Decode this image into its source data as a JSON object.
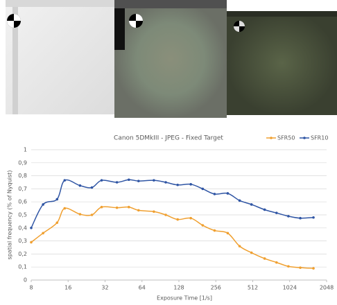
{
  "chart_data": {
    "type": "line",
    "title": "Canon 5DMkIII - JPEG - Fixed Target",
    "x_label": "Exposure Time [1/s]",
    "y_label": "spatial frequency (% of Nyquist)",
    "x": [
      8,
      10,
      13,
      15,
      20,
      25,
      30,
      40,
      50,
      60,
      80,
      100,
      125,
      160,
      200,
      250,
      320,
      400,
      500,
      640,
      800,
      1000,
      1250,
      1600
    ],
    "series": [
      {
        "name": "SFR50",
        "color": "#f0a030",
        "values": [
          0.29,
          0.36,
          0.44,
          0.55,
          0.505,
          0.5,
          0.56,
          0.555,
          0.56,
          0.535,
          0.525,
          0.5,
          0.465,
          0.475,
          0.42,
          0.38,
          0.36,
          0.26,
          0.21,
          0.165,
          0.135,
          0.105,
          0.095,
          0.09
        ]
      },
      {
        "name": "SFR10",
        "color": "#2f55a4",
        "values": [
          0.4,
          0.58,
          0.62,
          0.765,
          0.725,
          0.71,
          0.765,
          0.75,
          0.77,
          0.76,
          0.765,
          0.75,
          0.73,
          0.735,
          0.7,
          0.66,
          0.665,
          0.61,
          0.58,
          0.54,
          0.515,
          0.49,
          0.475,
          0.48
        ]
      }
    ],
    "xlim": [
      8,
      2048
    ],
    "xticks": [
      8,
      16,
      32,
      64,
      128,
      256,
      512,
      1024,
      2048
    ],
    "xscale": "log2",
    "ylim": [
      0,
      1
    ],
    "yticks": [
      0,
      {
        "value": 0.1,
        "label": "0,1"
      },
      {
        "value": 0.2,
        "label": "0,2"
      },
      {
        "value": 0.3,
        "label": "0,3"
      },
      {
        "value": 0.4,
        "label": "0,4"
      },
      {
        "value": 0.5,
        "label": "0,5"
      },
      {
        "value": 0.6,
        "label": "0,6"
      },
      {
        "value": 0.7,
        "label": "0,7"
      },
      {
        "value": 0.8,
        "label": "0,8"
      },
      {
        "value": 0.9,
        "label": "0,9"
      },
      1
    ],
    "grid": true,
    "legend": "top-right"
  }
}
